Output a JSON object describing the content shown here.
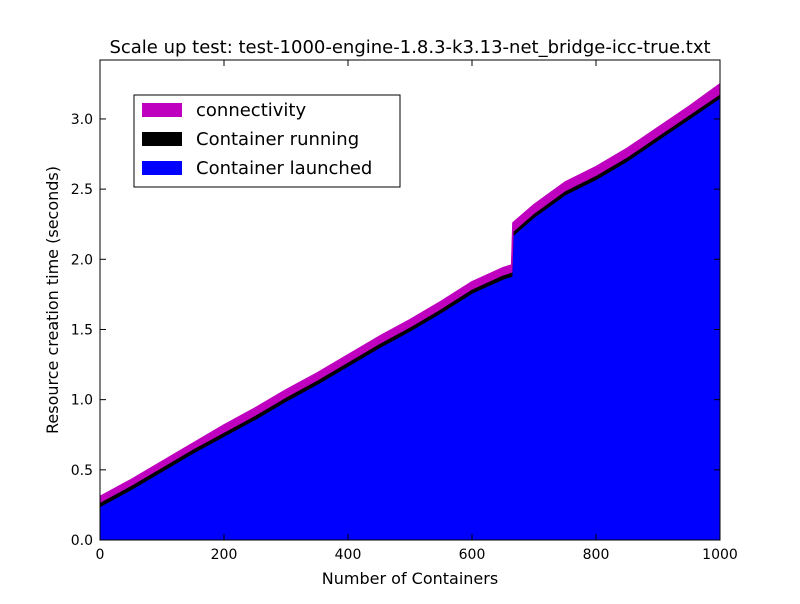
{
  "chart_data": {
    "type": "bar",
    "stacked": true,
    "title": "Scale up test: test-1000-engine-1.8.3-k3.13-net_bridge-icc-true.txt",
    "xlabel": "Number of Containers",
    "ylabel": "Resource creation time (seconds)",
    "xlim": [
      0,
      1000
    ],
    "ylim": [
      0,
      3.42
    ],
    "xticks": [
      0,
      200,
      400,
      600,
      800,
      1000
    ],
    "xtick_labels": [
      "0",
      "200",
      "400",
      "600",
      "800",
      "1000"
    ],
    "yticks": [
      0.0,
      0.5,
      1.0,
      1.5,
      2.0,
      2.5,
      3.0
    ],
    "ytick_labels": [
      "0.0",
      "0.5",
      "1.0",
      "1.5",
      "2.0",
      "2.5",
      "3.0"
    ],
    "grid": false,
    "legend_position": "upper-left",
    "legend": [
      {
        "label": "connectivity",
        "color": "#bf00bf"
      },
      {
        "label": "Container running",
        "color": "#000000"
      },
      {
        "label": "Container launched",
        "color": "#0000ff"
      }
    ],
    "x": [
      0,
      50,
      100,
      150,
      200,
      250,
      300,
      350,
      400,
      450,
      500,
      550,
      600,
      650,
      664,
      666,
      700,
      750,
      800,
      850,
      900,
      950,
      1000
    ],
    "series": [
      {
        "name": "Container launched",
        "color": "#0000ff",
        "values": [
          0.24,
          0.36,
          0.49,
          0.62,
          0.74,
          0.86,
          0.99,
          1.11,
          1.24,
          1.37,
          1.49,
          1.62,
          1.76,
          1.86,
          1.88,
          2.17,
          2.3,
          2.46,
          2.57,
          2.7,
          2.85,
          3.0,
          3.15
        ]
      },
      {
        "name": "Container running",
        "color": "#000000",
        "values": [
          0.03,
          0.03,
          0.03,
          0.03,
          0.03,
          0.03,
          0.03,
          0.03,
          0.03,
          0.03,
          0.03,
          0.03,
          0.03,
          0.03,
          0.03,
          0.03,
          0.03,
          0.03,
          0.03,
          0.03,
          0.03,
          0.03,
          0.03
        ]
      },
      {
        "name": "connectivity",
        "color": "#bf00bf",
        "values": [
          0.04,
          0.04,
          0.04,
          0.04,
          0.05,
          0.05,
          0.05,
          0.05,
          0.05,
          0.05,
          0.05,
          0.05,
          0.05,
          0.05,
          0.05,
          0.06,
          0.06,
          0.06,
          0.06,
          0.06,
          0.06,
          0.06,
          0.07
        ]
      }
    ]
  }
}
